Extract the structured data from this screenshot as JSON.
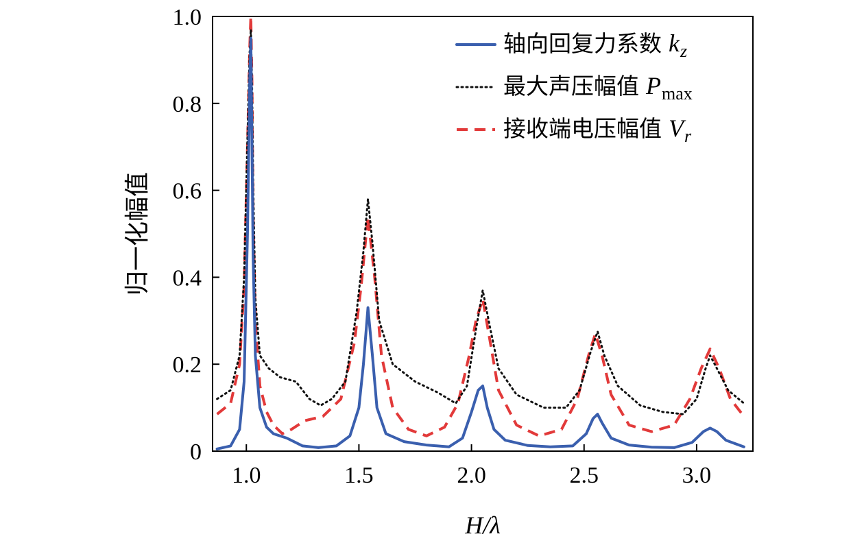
{
  "chart_data": {
    "type": "line",
    "title": "",
    "xlabel": "H/λ",
    "ylabel": "归一化幅值",
    "xlim": [
      0.85,
      3.25
    ],
    "ylim": [
      0,
      1.0
    ],
    "xticks": [
      "1.0",
      "1.5",
      "2.0",
      "2.5",
      "3.0"
    ],
    "xtick_values": [
      1.0,
      1.5,
      2.0,
      2.5,
      3.0
    ],
    "yticks": [
      "0",
      "0.2",
      "0.4",
      "0.6",
      "0.8",
      "1.0"
    ],
    "ytick_values": [
      0,
      0.2,
      0.4,
      0.6,
      0.8,
      1.0
    ],
    "grid": false,
    "legend_position": "top-right",
    "series": [
      {
        "name": "轴向回复力系数",
        "symbol": "k",
        "subscript": "z",
        "color": "#3a5fae",
        "style": "solid",
        "x": [
          0.87,
          0.93,
          0.97,
          0.99,
          1.005,
          1.015,
          1.02,
          1.025,
          1.03,
          1.04,
          1.06,
          1.09,
          1.12,
          1.18,
          1.25,
          1.32,
          1.4,
          1.46,
          1.5,
          1.52,
          1.54,
          1.56,
          1.58,
          1.62,
          1.7,
          1.8,
          1.9,
          1.96,
          2.0,
          2.03,
          2.05,
          2.07,
          2.1,
          2.15,
          2.25,
          2.35,
          2.45,
          2.51,
          2.54,
          2.56,
          2.58,
          2.62,
          2.7,
          2.8,
          2.9,
          2.98,
          3.03,
          3.06,
          3.09,
          3.13,
          3.21
        ],
        "values": [
          0.005,
          0.012,
          0.05,
          0.16,
          0.5,
          0.85,
          0.95,
          0.7,
          0.45,
          0.22,
          0.1,
          0.055,
          0.04,
          0.03,
          0.012,
          0.008,
          0.012,
          0.035,
          0.1,
          0.2,
          0.33,
          0.22,
          0.1,
          0.04,
          0.022,
          0.014,
          0.01,
          0.03,
          0.09,
          0.14,
          0.15,
          0.1,
          0.05,
          0.025,
          0.013,
          0.01,
          0.012,
          0.04,
          0.075,
          0.085,
          0.065,
          0.03,
          0.014,
          0.009,
          0.008,
          0.02,
          0.045,
          0.053,
          0.045,
          0.025,
          0.01
        ]
      },
      {
        "name": "最大声压幅值",
        "symbol": "P",
        "subscript": "max",
        "color": "#111111",
        "style": "dotted",
        "x": [
          0.87,
          0.93,
          0.97,
          0.99,
          1.005,
          1.015,
          1.02,
          1.025,
          1.03,
          1.04,
          1.06,
          1.1,
          1.15,
          1.22,
          1.28,
          1.33,
          1.38,
          1.44,
          1.49,
          1.52,
          1.54,
          1.56,
          1.59,
          1.65,
          1.75,
          1.85,
          1.93,
          1.98,
          2.02,
          2.05,
          2.08,
          2.12,
          2.2,
          2.32,
          2.42,
          2.48,
          2.53,
          2.56,
          2.59,
          2.65,
          2.75,
          2.85,
          2.94,
          3.0,
          3.04,
          3.06,
          3.09,
          3.14,
          3.21
        ],
        "values": [
          0.12,
          0.14,
          0.22,
          0.4,
          0.72,
          0.92,
          0.97,
          0.85,
          0.62,
          0.35,
          0.22,
          0.19,
          0.17,
          0.16,
          0.12,
          0.105,
          0.12,
          0.16,
          0.32,
          0.46,
          0.58,
          0.48,
          0.3,
          0.2,
          0.16,
          0.135,
          0.11,
          0.15,
          0.28,
          0.37,
          0.29,
          0.19,
          0.13,
          0.1,
          0.1,
          0.14,
          0.23,
          0.275,
          0.22,
          0.15,
          0.105,
          0.09,
          0.085,
          0.12,
          0.19,
          0.22,
          0.19,
          0.14,
          0.11
        ]
      },
      {
        "name": "接收端电压幅值",
        "symbol": "V",
        "subscript": "r",
        "color": "#e23a3a",
        "style": "dashed",
        "x": [
          0.87,
          0.93,
          0.97,
          0.99,
          1.005,
          1.015,
          1.02,
          1.025,
          1.03,
          1.04,
          1.06,
          1.09,
          1.12,
          1.16,
          1.2,
          1.26,
          1.34,
          1.42,
          1.48,
          1.51,
          1.54,
          1.57,
          1.6,
          1.65,
          1.72,
          1.8,
          1.88,
          1.94,
          1.99,
          2.02,
          2.05,
          2.08,
          2.12,
          2.2,
          2.3,
          2.4,
          2.47,
          2.52,
          2.55,
          2.58,
          2.62,
          2.7,
          2.8,
          2.9,
          2.97,
          3.02,
          3.06,
          3.1,
          3.15,
          3.21
        ],
        "values": [
          0.085,
          0.11,
          0.2,
          0.38,
          0.7,
          0.93,
          1.0,
          0.85,
          0.55,
          0.3,
          0.15,
          0.09,
          0.06,
          0.04,
          0.05,
          0.07,
          0.08,
          0.12,
          0.25,
          0.38,
          0.54,
          0.4,
          0.22,
          0.1,
          0.05,
          0.035,
          0.055,
          0.11,
          0.22,
          0.3,
          0.35,
          0.26,
          0.14,
          0.06,
          0.035,
          0.05,
          0.12,
          0.22,
          0.27,
          0.22,
          0.13,
          0.06,
          0.045,
          0.06,
          0.12,
          0.19,
          0.235,
          0.19,
          0.12,
          0.08
        ]
      }
    ]
  }
}
